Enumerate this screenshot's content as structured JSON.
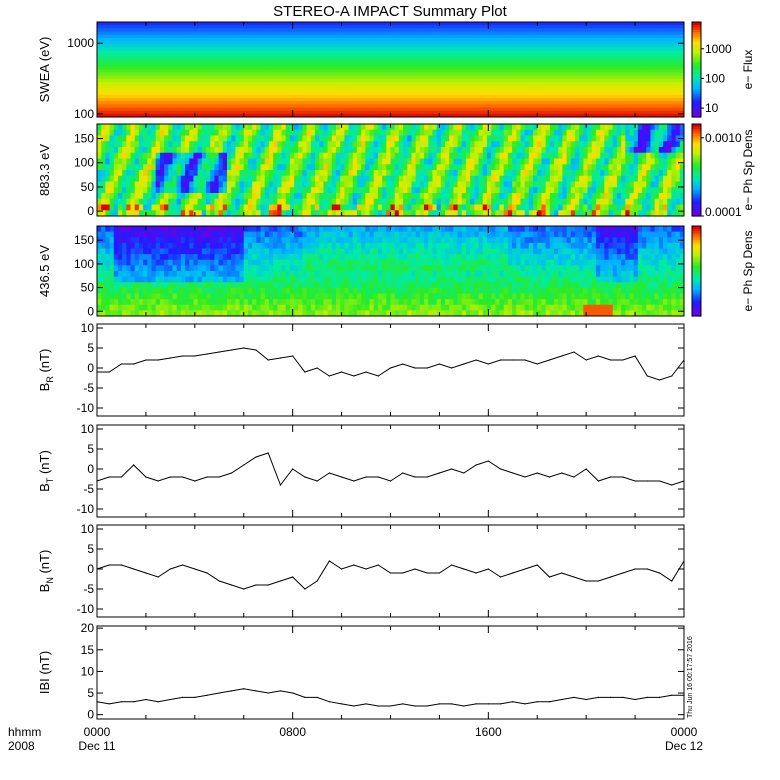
{
  "title": "STEREO-A IMPACT Summary Plot",
  "stamp": "Thu Jun 16 00:17:57 2016",
  "x_axis": {
    "ticks": [
      {
        "value": "0000",
        "sub": "Dec 11"
      },
      {
        "value": "0800",
        "sub": ""
      },
      {
        "value": "1600",
        "sub": ""
      },
      {
        "value": "0000",
        "sub": "Dec 12"
      }
    ],
    "corner_label": "hhmm",
    "corner_sub": "2008",
    "range_hours": [
      0,
      24
    ]
  },
  "chart_data": [
    {
      "type": "heatmap",
      "name": "swea",
      "ylabel": "SWEA (eV)",
      "yscale": "log",
      "ylim": [
        90,
        2000
      ],
      "yticks": [
        {
          "v": 100,
          "label": "100"
        },
        {
          "v": 1000,
          "label": "1000"
        }
      ],
      "colorbar": {
        "label": "e− Flux",
        "scale": "log",
        "range": [
          5,
          8000
        ],
        "ticks": [
          {
            "v": 10,
            "label": "10"
          },
          {
            "v": 100,
            "label": "100"
          },
          {
            "v": 1000,
            "label": "1000"
          }
        ]
      }
    },
    {
      "type": "heatmap",
      "name": "pad_883",
      "ylabel": "883.3 eV",
      "ylim": [
        -10,
        180
      ],
      "yticks": [
        {
          "v": 0,
          "label": "0"
        },
        {
          "v": 50,
          "label": "50"
        },
        {
          "v": 100,
          "label": "100"
        },
        {
          "v": 150,
          "label": "150"
        }
      ],
      "colorbar": {
        "label": "e− Ph Sp Dens",
        "scale": "log",
        "range": [
          0.0001,
          0.0015
        ],
        "ticks": [
          {
            "v": 0.0001,
            "label": "0.0001"
          },
          {
            "v": 0.001,
            "label": "0.0010"
          }
        ]
      }
    },
    {
      "type": "heatmap",
      "name": "pad_436",
      "ylabel": "436.5 eV",
      "ylim": [
        -10,
        180
      ],
      "yticks": [
        {
          "v": 0,
          "label": "0"
        },
        {
          "v": 50,
          "label": "50"
        },
        {
          "v": 100,
          "label": "100"
        },
        {
          "v": 150,
          "label": "150"
        }
      ],
      "colorbar": {
        "label": "e− Ph Sp Dens",
        "scale": "linear",
        "range": [
          0,
          1
        ],
        "ticks": []
      }
    },
    {
      "type": "line",
      "name": "BR",
      "ylabel_main": "B",
      "ylabel_sub": "R",
      "ylabel_unit": " (nT)",
      "ylim": [
        -12,
        11
      ],
      "yticks": [
        -10,
        -5,
        0,
        5,
        10
      ],
      "x": [
        0,
        0.5,
        1,
        1.5,
        2,
        2.5,
        3,
        3.5,
        4,
        4.5,
        5,
        5.5,
        6,
        6.5,
        7,
        7.5,
        8,
        8.5,
        9,
        9.5,
        10,
        10.5,
        11,
        11.5,
        12,
        12.5,
        13,
        13.5,
        14,
        14.5,
        15,
        15.5,
        16,
        16.5,
        17,
        17.5,
        18,
        18.5,
        19,
        19.5,
        20,
        20.5,
        21,
        21.5,
        22,
        22.5,
        23,
        23.5,
        24
      ],
      "y": [
        -1,
        -1,
        1,
        1,
        2,
        2,
        2.5,
        3,
        3,
        3.5,
        4,
        4.5,
        5,
        4.5,
        2,
        2.5,
        3,
        -1,
        0,
        -2,
        -1,
        -2,
        -1,
        -2,
        0,
        1,
        0,
        0,
        1,
        0,
        1,
        2,
        1,
        2,
        2,
        2,
        1,
        2,
        3,
        4,
        2,
        3,
        2,
        2,
        3,
        -2,
        -3,
        -2,
        2
      ]
    },
    {
      "type": "line",
      "name": "BT",
      "ylabel_main": "B",
      "ylabel_sub": "T",
      "ylabel_unit": " (nT)",
      "ylim": [
        -12,
        11
      ],
      "yticks": [
        -10,
        -5,
        0,
        5,
        10
      ],
      "x": [
        0,
        0.5,
        1,
        1.5,
        2,
        2.5,
        3,
        3.5,
        4,
        4.5,
        5,
        5.5,
        6,
        6.5,
        7,
        7.5,
        8,
        8.5,
        9,
        9.5,
        10,
        10.5,
        11,
        11.5,
        12,
        12.5,
        13,
        13.5,
        14,
        14.5,
        15,
        15.5,
        16,
        16.5,
        17,
        17.5,
        18,
        18.5,
        19,
        19.5,
        20,
        20.5,
        21,
        21.5,
        22,
        22.5,
        23,
        23.5,
        24
      ],
      "y": [
        -3,
        -2,
        -2,
        1,
        -2,
        -3,
        -2,
        -2,
        -3,
        -2,
        -2,
        -1,
        1,
        3,
        4,
        -4,
        0,
        -2,
        -3,
        -1,
        -2,
        -3,
        -2,
        -2,
        -3,
        -1,
        -2,
        -2,
        -1,
        0,
        -1,
        1,
        2,
        0,
        -1,
        -2,
        -1,
        -2,
        -1,
        -2,
        0,
        -3,
        -2,
        -2,
        -3,
        -3,
        -3,
        -4,
        -3
      ]
    },
    {
      "type": "line",
      "name": "BN",
      "ylabel_main": "B",
      "ylabel_sub": "N",
      "ylabel_unit": " (nT)",
      "ylim": [
        -12,
        11
      ],
      "yticks": [
        -10,
        -5,
        0,
        5,
        10
      ],
      "x": [
        0,
        0.5,
        1,
        1.5,
        2,
        2.5,
        3,
        3.5,
        4,
        4.5,
        5,
        5.5,
        6,
        6.5,
        7,
        7.5,
        8,
        8.5,
        9,
        9.5,
        10,
        10.5,
        11,
        11.5,
        12,
        12.5,
        13,
        13.5,
        14,
        14.5,
        15,
        15.5,
        16,
        16.5,
        17,
        17.5,
        18,
        18.5,
        19,
        19.5,
        20,
        20.5,
        21,
        21.5,
        22,
        22.5,
        23,
        23.5,
        24
      ],
      "y": [
        0,
        1,
        1,
        0,
        -1,
        -2,
        0,
        1,
        0,
        -1,
        -3,
        -4,
        -5,
        -4,
        -4,
        -3,
        -2,
        -5,
        -3,
        2,
        0,
        1,
        0,
        1,
        -1,
        -1,
        0,
        -1,
        -1,
        1,
        0,
        -1,
        0,
        -2,
        -1,
        0,
        1,
        -2,
        -1,
        -2,
        -3,
        -3,
        -2,
        -1,
        0,
        0,
        -1,
        -3,
        2
      ]
    },
    {
      "type": "line",
      "name": "Bmag",
      "ylabel_main": "IBI",
      "ylabel_sub": "",
      "ylabel_unit": " (nT)",
      "ylim": [
        -1,
        20.5
      ],
      "yticks": [
        0,
        5,
        10,
        15,
        20
      ],
      "x": [
        0,
        0.5,
        1,
        1.5,
        2,
        2.5,
        3,
        3.5,
        4,
        4.5,
        5,
        5.5,
        6,
        6.5,
        7,
        7.5,
        8,
        8.5,
        9,
        9.5,
        10,
        10.5,
        11,
        11.5,
        12,
        12.5,
        13,
        13.5,
        14,
        14.5,
        15,
        15.5,
        16,
        16.5,
        17,
        17.5,
        18,
        18.5,
        19,
        19.5,
        20,
        20.5,
        21,
        21.5,
        22,
        22.5,
        23,
        23.5,
        24
      ],
      "y": [
        3,
        2.5,
        3,
        3,
        3.5,
        3,
        3.5,
        4,
        4,
        4.5,
        5,
        5.5,
        6,
        5.5,
        5,
        5.5,
        5,
        4,
        4,
        3,
        2.5,
        2,
        2.5,
        2,
        2,
        2.5,
        2,
        2,
        2.5,
        2.5,
        2,
        2.5,
        2.5,
        2.5,
        3,
        2.5,
        3,
        3,
        3.5,
        4,
        3.5,
        4,
        4,
        4,
        3.5,
        4,
        4,
        4.5,
        4.5
      ]
    }
  ]
}
